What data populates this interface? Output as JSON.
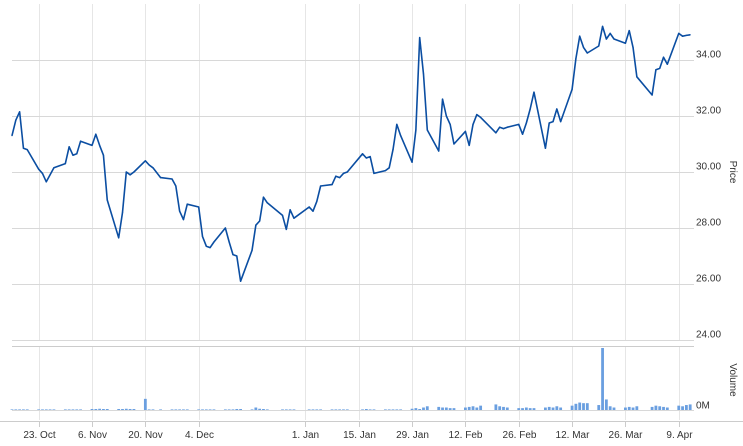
{
  "chart_data": [
    {
      "type": "line",
      "ylabel": "Price",
      "ylim": [
        24,
        36
      ],
      "yticks": [
        "24.00",
        "26.00",
        "28.00",
        "30.00",
        "32.00",
        "34.00"
      ],
      "ytick_values": [
        24,
        26,
        28,
        30,
        32,
        34
      ],
      "color": "#0b4ea2",
      "grid": true,
      "series": [
        {
          "x": [
            "2017-10-16",
            "2017-10-17",
            "2017-10-18",
            "2017-10-19",
            "2017-10-20",
            "2017-10-23",
            "2017-10-24",
            "2017-10-25",
            "2017-10-26",
            "2017-10-27",
            "2017-10-30",
            "2017-10-31",
            "2017-11-01",
            "2017-11-02",
            "2017-11-03",
            "2017-11-06",
            "2017-11-07",
            "2017-11-08",
            "2017-11-09",
            "2017-11-10",
            "2017-11-13",
            "2017-11-14",
            "2017-11-15",
            "2017-11-16",
            "2017-11-17",
            "2017-11-20",
            "2017-11-21",
            "2017-11-22",
            "2017-11-24",
            "2017-11-27",
            "2017-11-28",
            "2017-11-29",
            "2017-11-30",
            "2017-12-01",
            "2017-12-04",
            "2017-12-05",
            "2017-12-06",
            "2017-12-07",
            "2017-12-08",
            "2017-12-11",
            "2017-12-12",
            "2017-12-13",
            "2017-12-14",
            "2017-12-15",
            "2017-12-18",
            "2017-12-19",
            "2017-12-20",
            "2017-12-21",
            "2017-12-22",
            "2017-12-26",
            "2017-12-27",
            "2017-12-28",
            "2017-12-29",
            "2018-01-02",
            "2018-01-03",
            "2018-01-04",
            "2018-01-05",
            "2018-01-08",
            "2018-01-09",
            "2018-01-10",
            "2018-01-11",
            "2018-01-12",
            "2018-01-16",
            "2018-01-17",
            "2018-01-18",
            "2018-01-19",
            "2018-01-22",
            "2018-01-23",
            "2018-01-24",
            "2018-01-25",
            "2018-01-26",
            "2018-01-29",
            "2018-01-30",
            "2018-01-31",
            "2018-02-01",
            "2018-02-02",
            "2018-02-05",
            "2018-02-06",
            "2018-02-07",
            "2018-02-08",
            "2018-02-09",
            "2018-02-12",
            "2018-02-13",
            "2018-02-14",
            "2018-02-15",
            "2018-02-16",
            "2018-02-20",
            "2018-02-21",
            "2018-02-22",
            "2018-02-23",
            "2018-02-26",
            "2018-02-27",
            "2018-02-28",
            "2018-03-01",
            "2018-03-02",
            "2018-03-05",
            "2018-03-06",
            "2018-03-07",
            "2018-03-08",
            "2018-03-09",
            "2018-03-12",
            "2018-03-13",
            "2018-03-14",
            "2018-03-15",
            "2018-03-16",
            "2018-03-19",
            "2018-03-20",
            "2018-03-21",
            "2018-03-22",
            "2018-03-23",
            "2018-03-26",
            "2018-03-27",
            "2018-03-28",
            "2018-03-29",
            "2018-04-02",
            "2018-04-03",
            "2018-04-04",
            "2018-04-05",
            "2018-04-06",
            "2018-04-09",
            "2018-04-10",
            "2018-04-11",
            "2018-04-12"
          ],
          "values": [
            31.3,
            31.85,
            32.15,
            30.85,
            30.8,
            30.1,
            29.95,
            29.65,
            29.9,
            30.15,
            30.3,
            30.9,
            30.6,
            30.65,
            31.1,
            30.95,
            31.35,
            30.95,
            30.6,
            29.0,
            27.65,
            28.55,
            30.0,
            29.9,
            30.0,
            30.4,
            30.25,
            30.15,
            29.8,
            29.75,
            29.5,
            28.6,
            28.3,
            28.85,
            28.75,
            27.7,
            27.35,
            27.3,
            27.5,
            28.0,
            27.5,
            27.05,
            27.0,
            26.1,
            27.2,
            28.1,
            28.25,
            29.1,
            28.9,
            28.45,
            27.95,
            28.65,
            28.35,
            28.75,
            28.6,
            28.95,
            29.5,
            29.55,
            29.85,
            29.8,
            29.95,
            30.0,
            30.65,
            30.5,
            30.55,
            29.95,
            30.05,
            30.15,
            30.8,
            31.7,
            31.3,
            30.35,
            31.5,
            34.8,
            33.5,
            31.5,
            30.75,
            32.6,
            32.0,
            31.7,
            31.0,
            31.45,
            30.95,
            31.7,
            32.05,
            31.95,
            31.4,
            31.6,
            31.55,
            31.6,
            31.7,
            31.35,
            31.75,
            32.25,
            32.85,
            30.85,
            31.75,
            31.8,
            32.25,
            31.8,
            32.95,
            34.05,
            34.85,
            34.45,
            34.25,
            34.5,
            35.2,
            34.75,
            34.95,
            34.75,
            34.6,
            35.05,
            34.45,
            33.4,
            32.75,
            33.65,
            33.7,
            34.1,
            33.85,
            34.95,
            34.85,
            34.88,
            34.9
          ]
        }
      ]
    },
    {
      "type": "bar",
      "ylabel": "Volume",
      "yticks": [
        "0M"
      ],
      "ytick_values": [
        0
      ],
      "ylim": [
        0,
        1
      ],
      "color": "#6a9fe0",
      "grid": true,
      "series": [
        {
          "values": [
            0,
            0,
            0,
            0,
            0,
            0,
            0,
            0,
            0,
            0,
            0,
            0,
            0,
            0,
            0,
            0.01,
            0.01,
            0.02,
            0.01,
            0.01,
            0.01,
            0.01,
            0.02,
            0.01,
            0.01,
            0.18,
            0,
            0,
            0,
            0,
            0,
            0,
            0,
            0,
            0,
            0,
            0,
            0,
            0,
            0,
            0,
            0,
            0.01,
            0.01,
            0,
            0.04,
            0.02,
            0.01,
            0,
            0,
            0,
            0,
            0,
            0,
            0,
            0,
            0,
            0,
            0,
            0,
            0,
            0,
            0,
            0.01,
            0,
            0,
            0,
            0,
            0,
            0,
            0,
            0.02,
            0.03,
            0.01,
            0.04,
            0.06,
            0.05,
            0.04,
            0.04,
            0.03,
            0.03,
            0.04,
            0.05,
            0.06,
            0.04,
            0.07,
            0.09,
            0.06,
            0.05,
            0.04,
            0.03,
            0.03,
            0.04,
            0.03,
            0.03,
            0.04,
            0.05,
            0.04,
            0.06,
            0.04,
            0.07,
            0.1,
            0.12,
            0.11,
            0.11,
            0.08,
            1.0,
            0.17,
            0.06,
            0.04,
            0.04,
            0.05,
            0.04,
            0.06,
            0.05,
            0.07,
            0.06,
            0.05,
            0.04,
            0.07,
            0.06,
            0.08,
            0.09
          ]
        }
      ]
    }
  ],
  "x_axis": {
    "tick_labels": [
      "23. Oct",
      "6. Nov",
      "20. Nov",
      "4. Dec",
      "1. Jan",
      "15. Jan",
      "29. Jan",
      "12. Feb",
      "26. Feb",
      "12. Mar",
      "26. Mar",
      "9. Apr"
    ],
    "tick_dates": [
      "2017-10-23",
      "2017-11-06",
      "2017-11-20",
      "2017-12-04",
      "2018-01-01",
      "2018-01-15",
      "2018-01-29",
      "2018-02-12",
      "2018-02-26",
      "2018-03-12",
      "2018-03-26",
      "2018-04-09"
    ],
    "range": [
      "2017-10-16",
      "2018-04-13"
    ]
  }
}
